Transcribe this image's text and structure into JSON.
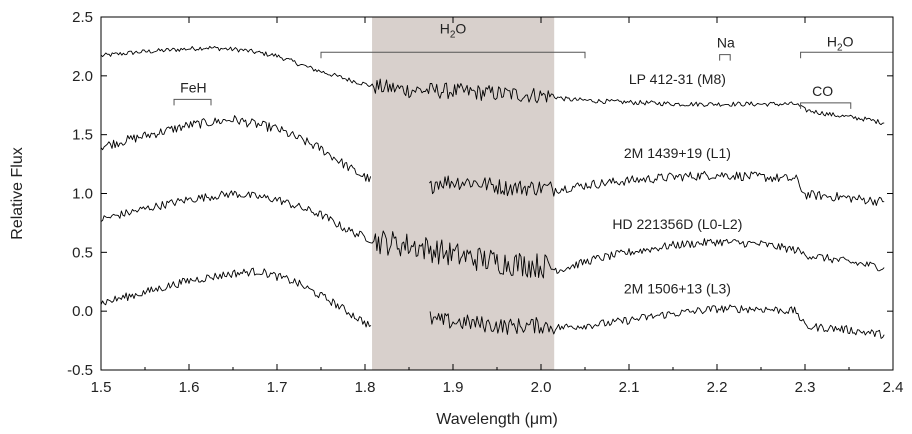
{
  "chart_data": {
    "type": "line",
    "title": "",
    "xlabel": "Wavelength (μm)",
    "ylabel": "Relative Flux",
    "xlim": [
      1.5,
      2.4
    ],
    "ylim": [
      -0.5,
      2.5
    ],
    "xticks": [
      "1.5",
      "1.6",
      "1.7",
      "1.8",
      "1.9",
      "2.0",
      "2.1",
      "2.2",
      "2.3",
      "2.4"
    ],
    "yticks": [
      "-0.5",
      "0.0",
      "0.5",
      "1.0",
      "1.5",
      "2.0",
      "2.5"
    ],
    "grid": false,
    "legend": "none",
    "shaded_region": {
      "x": [
        1.808,
        2.015
      ],
      "color": "#d8d0cc"
    },
    "series": [
      {
        "name": "LP 412-31 (M8)",
        "noise": 0.02,
        "gap_noise": 0.07,
        "points": [
          [
            1.5,
            2.17
          ],
          [
            1.54,
            2.2
          ],
          [
            1.58,
            2.22
          ],
          [
            1.62,
            2.24
          ],
          [
            1.66,
            2.22
          ],
          [
            1.7,
            2.17
          ],
          [
            1.74,
            2.06
          ],
          [
            1.78,
            1.97
          ],
          [
            1.81,
            1.91
          ],
          [
            1.85,
            1.88
          ],
          [
            1.9,
            1.87
          ],
          [
            1.95,
            1.85
          ],
          [
            2.01,
            1.83
          ],
          [
            2.03,
            1.8
          ],
          [
            2.08,
            1.78
          ],
          [
            2.12,
            1.77
          ],
          [
            2.16,
            1.76
          ],
          [
            2.2,
            1.76
          ],
          [
            2.25,
            1.76
          ],
          [
            2.29,
            1.76
          ],
          [
            2.3,
            1.71
          ],
          [
            2.33,
            1.67
          ],
          [
            2.37,
            1.63
          ],
          [
            2.39,
            1.6
          ]
        ]
      },
      {
        "name": "2M 1439+19 (L1)",
        "noise": 0.04,
        "gap_noise": 0.07,
        "points": [
          [
            1.5,
            1.4
          ],
          [
            1.55,
            1.49
          ],
          [
            1.6,
            1.58
          ],
          [
            1.65,
            1.63
          ],
          [
            1.7,
            1.55
          ],
          [
            1.75,
            1.38
          ],
          [
            1.79,
            1.18
          ],
          [
            1.81,
            1.1
          ],
          [
            1.875,
            1.05
          ],
          [
            1.88,
            1.1
          ],
          [
            1.92,
            1.1
          ],
          [
            1.96,
            1.05
          ],
          [
            2.0,
            1.05
          ],
          [
            2.02,
            1.04
          ],
          [
            2.06,
            1.08
          ],
          [
            2.1,
            1.11
          ],
          [
            2.15,
            1.14
          ],
          [
            2.2,
            1.16
          ],
          [
            2.25,
            1.14
          ],
          [
            2.29,
            1.12
          ],
          [
            2.3,
            0.99
          ],
          [
            2.34,
            0.97
          ],
          [
            2.39,
            0.93
          ]
        ]
      },
      {
        "name": "HD 221356D (L0-L2)",
        "noise": 0.035,
        "gap_noise": 0.11,
        "points": [
          [
            1.5,
            0.78
          ],
          [
            1.55,
            0.87
          ],
          [
            1.6,
            0.95
          ],
          [
            1.65,
            1.0
          ],
          [
            1.7,
            0.95
          ],
          [
            1.75,
            0.82
          ],
          [
            1.78,
            0.69
          ],
          [
            1.81,
            0.6
          ],
          [
            1.86,
            0.55
          ],
          [
            1.9,
            0.48
          ],
          [
            1.95,
            0.42
          ],
          [
            2.01,
            0.38
          ],
          [
            2.02,
            0.35
          ],
          [
            2.06,
            0.44
          ],
          [
            2.1,
            0.5
          ],
          [
            2.15,
            0.56
          ],
          [
            2.2,
            0.59
          ],
          [
            2.25,
            0.57
          ],
          [
            2.29,
            0.52
          ],
          [
            2.3,
            0.48
          ],
          [
            2.34,
            0.43
          ],
          [
            2.39,
            0.37
          ]
        ]
      },
      {
        "name": "2M 1506+13 (L3)",
        "noise": 0.035,
        "gap_noise": 0.07,
        "points": [
          [
            1.5,
            0.07
          ],
          [
            1.55,
            0.16
          ],
          [
            1.6,
            0.26
          ],
          [
            1.65,
            0.32
          ],
          [
            1.68,
            0.34
          ],
          [
            1.72,
            0.25
          ],
          [
            1.76,
            0.09
          ],
          [
            1.79,
            -0.05
          ],
          [
            1.805,
            -0.12
          ],
          [
            1.87,
            -0.05
          ],
          [
            1.88,
            -0.08
          ],
          [
            1.92,
            -0.1
          ],
          [
            1.96,
            -0.13
          ],
          [
            2.0,
            -0.12
          ],
          [
            2.02,
            -0.14
          ],
          [
            2.08,
            -0.1
          ],
          [
            2.14,
            -0.03
          ],
          [
            2.2,
            0.02
          ],
          [
            2.25,
            0.02
          ],
          [
            2.29,
            0.0
          ],
          [
            2.3,
            -0.13
          ],
          [
            2.34,
            -0.15
          ],
          [
            2.39,
            -0.2
          ]
        ]
      }
    ],
    "annotations": [
      {
        "text": "H",
        "sub": "2",
        "text_after": "O",
        "x": 1.9,
        "y": 2.36,
        "bracket": [
          1.75,
          2.05
        ],
        "bracket_y": 2.2
      },
      {
        "text": "Na",
        "x": 2.21,
        "y": 2.24,
        "bracket": [
          2.203,
          2.215
        ],
        "bracket_y": 2.18
      },
      {
        "text": "H",
        "sub": "2",
        "text_after": "O",
        "x": 2.34,
        "y": 2.25,
        "bracket": [
          2.295,
          2.4
        ],
        "bracket_y": 2.2
      },
      {
        "text": "FeH",
        "x": 1.605,
        "y": 1.86,
        "bracket": [
          1.583,
          1.625
        ],
        "bracket_y": 1.8
      },
      {
        "text": "CO",
        "x": 2.32,
        "y": 1.83,
        "bracket": [
          2.295,
          2.352
        ],
        "bracket_y": 1.77
      }
    ],
    "series_labels": [
      {
        "text": "LP 412-31 (M8)",
        "x": 2.155,
        "y": 1.93
      },
      {
        "text": "2M 1439+19 (L1)",
        "x": 2.155,
        "y": 1.3
      },
      {
        "text": "HD 221356D (L0-L2)",
        "x": 2.155,
        "y": 0.7
      },
      {
        "text": "2M 1506+13 (L3)",
        "x": 2.155,
        "y": 0.15
      }
    ]
  }
}
